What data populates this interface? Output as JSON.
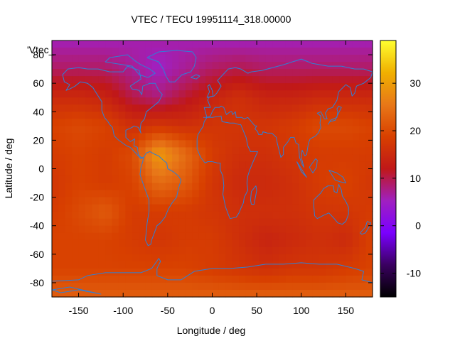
{
  "title": "VTEC / TECU 19951114_318.00000",
  "key_label": "'Vtec_",
  "xlabel": "Longitude / deg",
  "ylabel": "Latitude / deg",
  "colors": {
    "coastline": "#2f7fd6",
    "palette": [
      "#000000",
      "#3a0060",
      "#7a00ff",
      "#a020c0",
      "#c01818",
      "#d84000",
      "#e87818",
      "#f0b000",
      "#ffff30"
    ]
  },
  "chart_data": {
    "type": "heatmap",
    "title": "VTEC / TECU 19951114_318.00000",
    "xlabel": "Longitude / deg",
    "ylabel": "Latitude / deg",
    "xlim": [
      -180,
      180
    ],
    "ylim": [
      -90,
      90
    ],
    "x_ticks": [
      -150,
      -100,
      -50,
      0,
      50,
      100,
      150
    ],
    "y_ticks": [
      -80,
      -60,
      -40,
      -20,
      0,
      20,
      40,
      60,
      80
    ],
    "colorbar": {
      "range": [
        -15,
        39
      ],
      "ticks": [
        -10,
        0,
        10,
        20,
        30
      ]
    },
    "grid": false,
    "overlay": "world coastlines",
    "value_grid": {
      "lon": [
        -180,
        -150,
        -120,
        -90,
        -60,
        -30,
        0,
        30,
        60,
        90,
        120,
        150,
        180
      ],
      "lat": [
        87.5,
        70,
        50,
        30,
        10,
        -10,
        -30,
        -50,
        -70,
        -87.5
      ],
      "values": [
        [
          6,
          6,
          6,
          6,
          6,
          6,
          6,
          6,
          6,
          6,
          6,
          6,
          6
        ],
        [
          9,
          9,
          9,
          7,
          5,
          7,
          9,
          10,
          9,
          9,
          9,
          9,
          9
        ],
        [
          15,
          15,
          14,
          10,
          8,
          11,
          14,
          16,
          14,
          14,
          15,
          15,
          15
        ],
        [
          19,
          20,
          19,
          16,
          17,
          16,
          17,
          17,
          17,
          18,
          20,
          20,
          19
        ],
        [
          18,
          19,
          18,
          20,
          30,
          24,
          18,
          16,
          16,
          17,
          18,
          18,
          18
        ],
        [
          17,
          19,
          18,
          19,
          24,
          22,
          17,
          15,
          15,
          16,
          18,
          19,
          17
        ],
        [
          18,
          20,
          22,
          18,
          18,
          18,
          17,
          16,
          16,
          16,
          17,
          17,
          18
        ],
        [
          19,
          19,
          19,
          18,
          17,
          18,
          18,
          16,
          14,
          15,
          16,
          15,
          19
        ],
        [
          19,
          19,
          19,
          19,
          19,
          19,
          18,
          17,
          16,
          17,
          17,
          18,
          19
        ],
        [
          22,
          22,
          22,
          22,
          22,
          22,
          22,
          22,
          22,
          22,
          22,
          22,
          22
        ]
      ]
    }
  }
}
